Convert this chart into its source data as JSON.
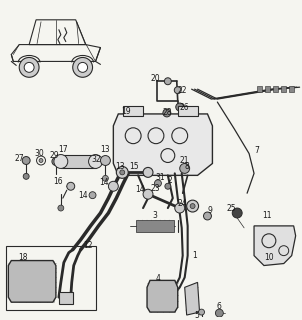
{
  "bg_color": "#f5f5f0",
  "line_color": "#2a2a2a",
  "text_color": "#1a1a1a",
  "fig_width": 3.02,
  "fig_height": 3.2,
  "dpi": 100
}
